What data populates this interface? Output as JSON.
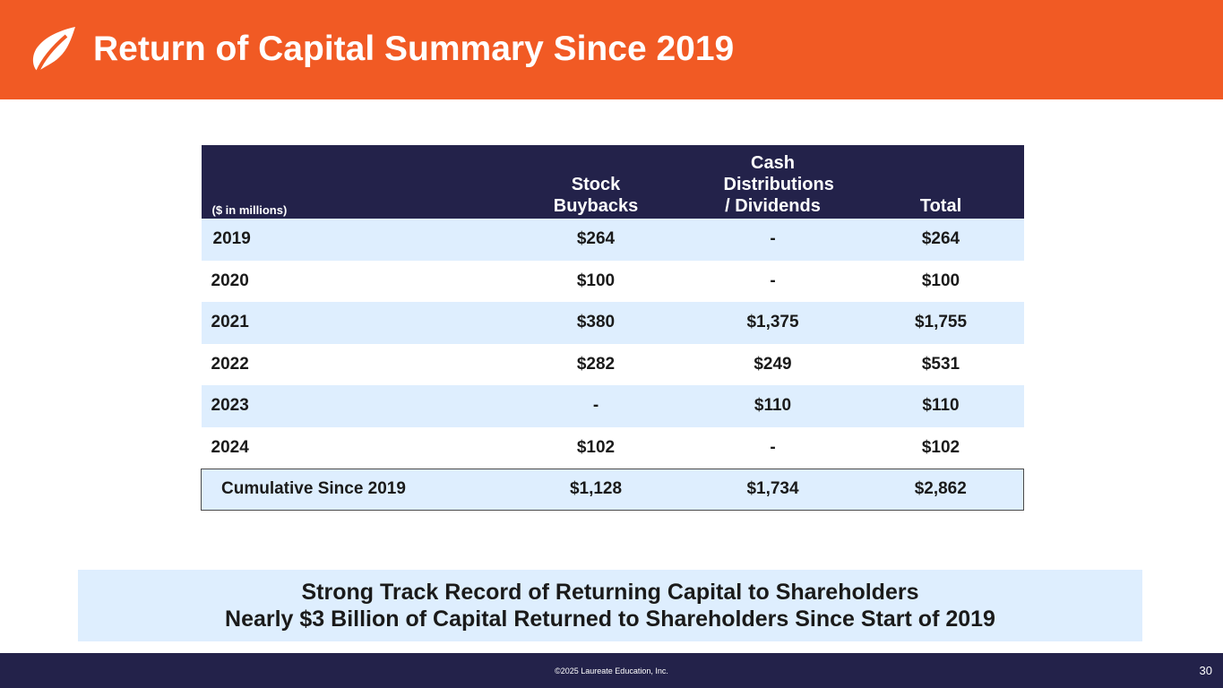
{
  "header": {
    "title": "Return of Capital Summary Since 2019",
    "brand_color": "#f15a24",
    "logo_icon": "leaf-logo-icon"
  },
  "table": {
    "units_label": "($ in millions)",
    "columns": [
      "Stock Buybacks",
      "Cash Distributions / Dividends",
      "Total"
    ],
    "header_color": "#23224a",
    "rows": [
      {
        "year": "2019",
        "buybacks": "$264",
        "dividends": "-",
        "total": "$264"
      },
      {
        "year": "2020",
        "buybacks": "$100",
        "dividends": "-",
        "total": "$100"
      },
      {
        "year": "2021",
        "buybacks": "$380",
        "dividends": "$1,375",
        "total": "$1,755"
      },
      {
        "year": "2022",
        "buybacks": "$282",
        "dividends": "$249",
        "total": "$531"
      },
      {
        "year": "2023",
        "buybacks": "-",
        "dividends": "$110",
        "total": "$110"
      },
      {
        "year": "2024",
        "buybacks": "$102",
        "dividends": "-",
        "total": "$102"
      }
    ],
    "cumulative": {
      "label": "Cumulative Since 2019",
      "buybacks": "$1,128",
      "dividends": "$1,734",
      "total": "$2,862"
    },
    "shade_color": "#deeefe"
  },
  "callout": {
    "line1": "Strong Track Record of Returning Capital to Shareholders",
    "line2": "Nearly $3 Billion of Capital Returned to Shareholders Since Start of 2019"
  },
  "footer": {
    "copyright": "©2025 Laureate Education, Inc.",
    "page_number": "30"
  }
}
